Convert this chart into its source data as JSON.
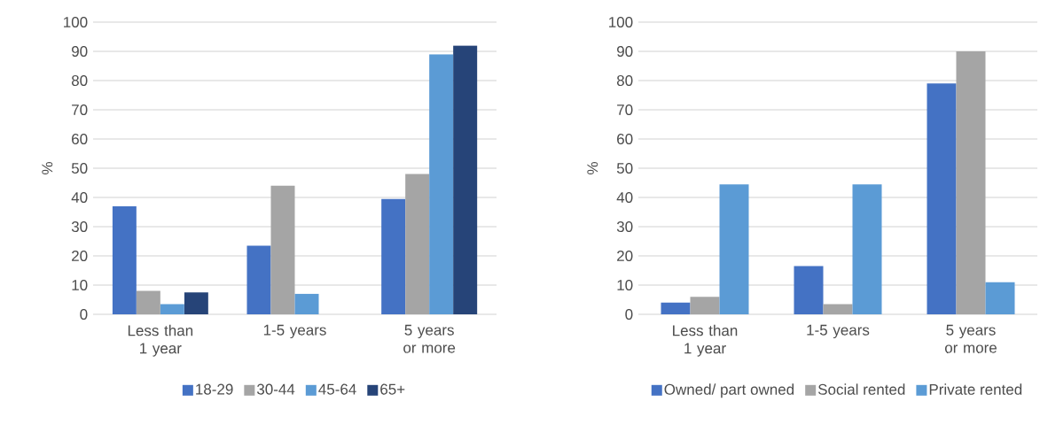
{
  "chart_data": [
    {
      "type": "bar",
      "ylabel": "%",
      "categories": [
        "Less than 1 year",
        "1-5 years",
        "5 years or more"
      ],
      "ylim": [
        0,
        100
      ],
      "yticks": [
        0,
        10,
        20,
        30,
        40,
        50,
        60,
        70,
        80,
        90,
        100
      ],
      "grid": "y",
      "legend": "bottom",
      "series": [
        {
          "name": "18-29",
          "color": "#4472c4",
          "values": [
            37,
            23.5,
            39.5
          ]
        },
        {
          "name": "30-44",
          "color": "#a5a5a5",
          "values": [
            8,
            44,
            48
          ]
        },
        {
          "name": "45-64",
          "color": "#5b9bd5",
          "values": [
            3.5,
            7,
            89
          ]
        },
        {
          "name": "65+",
          "color": "#264478",
          "values": [
            7.5,
            null,
            92
          ]
        }
      ]
    },
    {
      "type": "bar",
      "ylabel": "%",
      "categories": [
        "Less than 1 year",
        "1-5 years",
        "5 years or more"
      ],
      "ylim": [
        0,
        100
      ],
      "yticks": [
        0,
        10,
        20,
        30,
        40,
        50,
        60,
        70,
        80,
        90,
        100
      ],
      "grid": "y",
      "legend": "bottom",
      "series": [
        {
          "name": "Owned/ part owned",
          "color": "#4472c4",
          "values": [
            4,
            16.5,
            79
          ]
        },
        {
          "name": "Social rented",
          "color": "#a5a5a5",
          "values": [
            6,
            3.5,
            90
          ]
        },
        {
          "name": "Private rented",
          "color": "#5b9bd5",
          "values": [
            44.5,
            44.5,
            11
          ]
        }
      ]
    }
  ]
}
